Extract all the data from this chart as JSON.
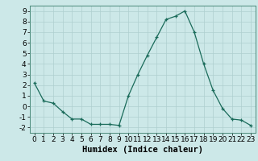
{
  "x": [
    0,
    1,
    2,
    3,
    4,
    5,
    6,
    7,
    8,
    9,
    10,
    11,
    12,
    13,
    14,
    15,
    16,
    17,
    18,
    19,
    20,
    21,
    22,
    23
  ],
  "y": [
    2.2,
    0.5,
    0.3,
    -0.5,
    -1.2,
    -1.2,
    -1.7,
    -1.7,
    -1.7,
    -1.8,
    1.0,
    3.0,
    4.8,
    6.5,
    8.2,
    8.5,
    9.0,
    7.0,
    4.0,
    1.5,
    -0.2,
    -1.2,
    -1.3,
    -1.8
  ],
  "xlabel": "Humidex (Indice chaleur)",
  "xlim": [
    -0.5,
    23.5
  ],
  "ylim": [
    -2.5,
    9.5
  ],
  "xticks": [
    0,
    1,
    2,
    3,
    4,
    5,
    6,
    7,
    8,
    9,
    10,
    11,
    12,
    13,
    14,
    15,
    16,
    17,
    18,
    19,
    20,
    21,
    22,
    23
  ],
  "yticks": [
    -2,
    -1,
    0,
    1,
    2,
    3,
    4,
    5,
    6,
    7,
    8,
    9
  ],
  "line_color": "#1a6b5a",
  "bg_color": "#cce8e8",
  "grid_color": "#aecfcf",
  "tick_fontsize": 6.5,
  "label_fontsize": 7.5
}
